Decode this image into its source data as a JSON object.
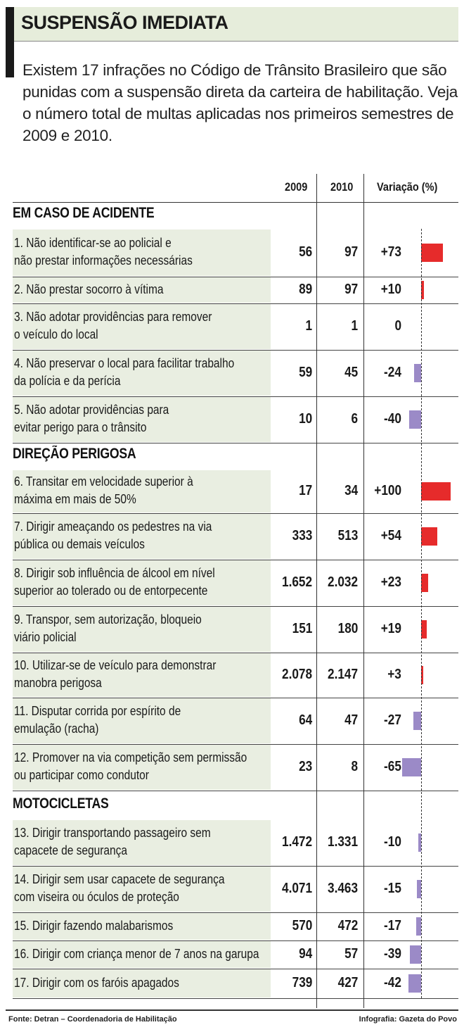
{
  "title": "SUSPENSÃO IMEDIATA",
  "intro": "Existem 17 infrações no Código de Trânsito Brasileiro que são punidas com a suspensão direta da carteira de habilitação. Veja o número total de multas aplicadas nos primeiros semestres de 2009 e 2010.",
  "headers": {
    "y2009": "2009",
    "y2010": "2010",
    "variation": "Variação (%)"
  },
  "colors": {
    "positive": "#e62b2b",
    "negative": "#9b8ac7",
    "row_bg": "#e9eee1",
    "title_bg": "#e6eddb"
  },
  "chart_data": {
    "type": "table",
    "columns": [
      "2009",
      "2010",
      "Variação (%)"
    ],
    "sections": [
      {
        "name": "EM CASO DE ACIDENTE",
        "rows": [
          {
            "label": "1. Não identificar-se ao policial e não prestar informações necessárias",
            "lines": [
              "1. Não identificar-se ao policial e",
              "não prestar informações necessárias"
            ],
            "v2009": "56",
            "v2010": "97",
            "var_text": "+73",
            "var": 73
          },
          {
            "label": "2. Não prestar socorro à vítima",
            "lines": [
              "2. Não prestar socorro à vítima"
            ],
            "v2009": "89",
            "v2010": "97",
            "var_text": "+10",
            "var": 10
          },
          {
            "label": "3. Não adotar providências para remover o veículo do local",
            "lines": [
              "3. Não adotar providências para remover",
              "o veículo do local"
            ],
            "v2009": "1",
            "v2010": "1",
            "var_text": "0",
            "var": 0
          },
          {
            "label": "4. Não preservar o local para facilitar trabalho da polícia e da perícia",
            "lines": [
              "4. Não preservar o local para facilitar trabalho",
              "da polícia e da perícia"
            ],
            "v2009": "59",
            "v2010": "45",
            "var_text": "-24",
            "var": -24
          },
          {
            "label": "5. Não adotar providências para evitar perigo para o trânsito",
            "lines": [
              "5. Não adotar providências para",
              "evitar perigo para o trânsito"
            ],
            "v2009": "10",
            "v2010": "6",
            "var_text": "-40",
            "var": -40
          }
        ]
      },
      {
        "name": "DIREÇÃO PERIGOSA",
        "rows": [
          {
            "label": "6. Transitar em velocidade superior à máxima em mais de 50%",
            "lines": [
              "6. Transitar em velocidade superior à",
              "máxima em mais de 50%"
            ],
            "v2009": "17",
            "v2010": "34",
            "var_text": "+100",
            "var": 100
          },
          {
            "label": "7. Dirigir ameaçando os pedestres na via pública ou demais veículos",
            "lines": [
              "7. Dirigir ameaçando os pedestres na via",
              "pública ou demais veículos"
            ],
            "v2009": "333",
            "v2010": "513",
            "var_text": "+54",
            "var": 54
          },
          {
            "label": "8. Dirigir sob influência de álcool em nível superior ao tolerado ou de entorpecente",
            "lines": [
              "8. Dirigir sob influência de álcool em nível",
              "superior ao tolerado ou de entorpecente"
            ],
            "v2009": "1.652",
            "v2010": "2.032",
            "var_text": "+23",
            "var": 23
          },
          {
            "label": "9. Transpor, sem autorização, bloqueio viário policial",
            "lines": [
              "9. Transpor, sem autorização, bloqueio",
              "viário policial"
            ],
            "v2009": "151",
            "v2010": "180",
            "var_text": "+19",
            "var": 19
          },
          {
            "label": "10. Utilizar-se de veículo para demonstrar manobra perigosa",
            "lines": [
              "10. Utilizar-se de veículo para demonstrar",
              "manobra perigosa"
            ],
            "v2009": "2.078",
            "v2010": "2.147",
            "var_text": "+3",
            "var": 3
          },
          {
            "label": "11. Disputar corrida por espírito de emulação (racha)",
            "lines": [
              "11. Disputar corrida por espírito de",
              "emulação (racha)"
            ],
            "v2009": "64",
            "v2010": "47",
            "var_text": "-27",
            "var": -27
          },
          {
            "label": "12. Promover na via competição sem permissão ou participar como condutor",
            "lines": [
              "12. Promover na via competição sem permissão",
              "ou participar como condutor"
            ],
            "v2009": "23",
            "v2010": "8",
            "var_text": "-65",
            "var": -65
          }
        ]
      },
      {
        "name": "MOTOCICLETAS",
        "rows": [
          {
            "label": "13. Dirigir transportando passageiro sem capacete de segurança",
            "lines": [
              "13. Dirigir transportando passageiro sem",
              "capacete de segurança"
            ],
            "v2009": "1.472",
            "v2010": "1.331",
            "var_text": "-10",
            "var": -10
          },
          {
            "label": "14. Dirigir sem usar capacete de segurança com viseira ou óculos de proteção",
            "lines": [
              "14. Dirigir sem usar capacete de segurança",
              "com viseira ou óculos de proteção"
            ],
            "v2009": "4.071",
            "v2010": "3.463",
            "var_text": "-15",
            "var": -15
          },
          {
            "label": "15. Dirigir fazendo malabarismos",
            "lines": [
              "15. Dirigir fazendo malabarismos"
            ],
            "v2009": "570",
            "v2010": "472",
            "var_text": "-17",
            "var": -17
          },
          {
            "label": "16. Dirigir com criança menor de 7 anos na garupa",
            "lines": [
              "16. Dirigir com criança menor de 7 anos na garupa"
            ],
            "v2009": "94",
            "v2010": "57",
            "var_text": "-39",
            "var": -39
          },
          {
            "label": "17. Dirigir com os faróis apagados",
            "lines": [
              "17. Dirigir com os faróis apagados"
            ],
            "v2009": "739",
            "v2010": "427",
            "var_text": "-42",
            "var": -42
          }
        ]
      }
    ]
  },
  "footer": {
    "source": "Fonte: Detran – Coordenadoria de Habilitação",
    "credit": "Infografia: Gazeta do Povo"
  }
}
